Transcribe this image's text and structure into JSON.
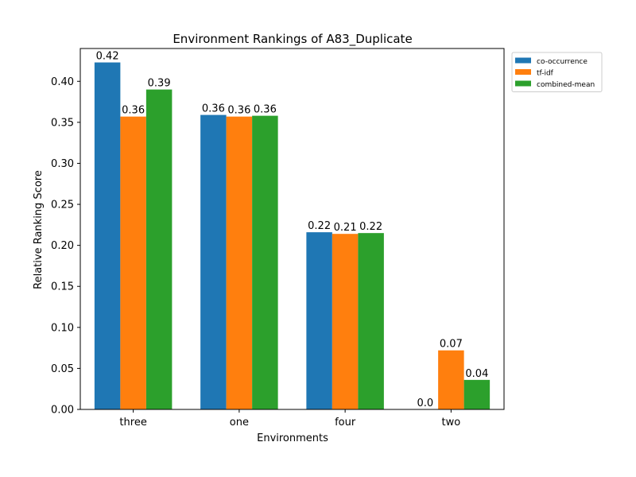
{
  "chart_data": {
    "type": "bar",
    "title": "Environment Rankings of A83_Duplicate",
    "xlabel": "Environments",
    "ylabel": "Relative Ranking Score",
    "categories": [
      "three",
      "one",
      "four",
      "two"
    ],
    "ylim": [
      0,
      0.44
    ],
    "yticks": [
      0.0,
      0.05,
      0.1,
      0.15,
      0.2,
      0.25,
      0.3,
      0.35,
      0.4
    ],
    "ytick_labels": [
      "0.00",
      "0.05",
      "0.10",
      "0.15",
      "0.20",
      "0.25",
      "0.30",
      "0.35",
      "0.40"
    ],
    "legend_position": "outside-top-right",
    "series": [
      {
        "name": "co-occurrence",
        "color": "#1f77b4",
        "values": [
          0.423,
          0.359,
          0.216,
          0.0
        ],
        "labels": [
          "0.42",
          "0.36",
          "0.22",
          "0.0"
        ]
      },
      {
        "name": "tf-idf",
        "color": "#ff7f0e",
        "values": [
          0.357,
          0.357,
          0.214,
          0.072
        ],
        "labels": [
          "0.36",
          "0.36",
          "0.21",
          "0.07"
        ]
      },
      {
        "name": "combined-mean",
        "color": "#2ca02c",
        "values": [
          0.39,
          0.358,
          0.215,
          0.036
        ],
        "labels": [
          "0.39",
          "0.36",
          "0.22",
          "0.04"
        ]
      }
    ]
  }
}
